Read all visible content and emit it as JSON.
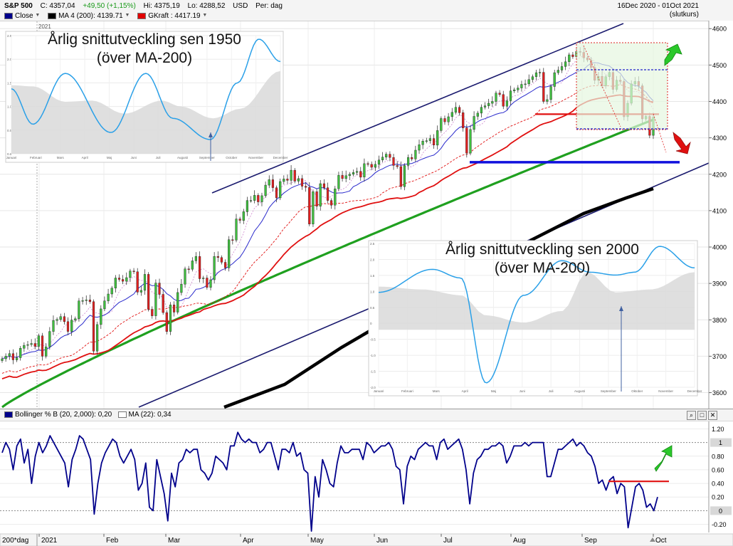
{
  "header": {
    "symbol": "S&P 500",
    "close": "C: 4357,04",
    "change": "+49,50 (+1,15%)",
    "high": "Hi: 4375,19",
    "low": "Lo: 4288,52",
    "currency": "USD",
    "period": "Per: dag",
    "range": "16Dec 2020 - 01Oct 2021",
    "basis": "(slutkurs)",
    "legend": [
      {
        "label": "Close",
        "color": "#00008b"
      },
      {
        "label": "MA 4 (200): 4139.71",
        "color": "#000000"
      },
      {
        "label": "GKraft : 4417.19",
        "color": "#e00000"
      }
    ]
  },
  "lower_panel": {
    "title": "Bollinger % B (20, 2,000): 0,20",
    "ma_label": "MA (22): 0,34",
    "color_line": "#00008b",
    "icons": [
      "magnifier-icon",
      "maximize-icon",
      "close-icon"
    ]
  },
  "x_axis": {
    "labels": [
      "200*dag",
      "2021",
      "Feb",
      "Mar",
      "Apr",
      "May",
      "Jun",
      "Jul",
      "Aug",
      "Sep",
      "Oct"
    ],
    "months_x": [
      55,
      146,
      233,
      338,
      433,
      526,
      620,
      718,
      818,
      918
    ]
  },
  "insets": [
    {
      "title_line1": "Årlig snittutveckling sen 1950",
      "title_line2": "(över MA-200)",
      "year_tag": "2021",
      "y_ticks": [
        "2.5",
        "2.0",
        "1.5",
        "1.0",
        "0.5",
        "0.0"
      ],
      "x_ticks": [
        "Januari",
        "Februari",
        "Mars",
        "April",
        "Maj",
        "Juni",
        "Juli",
        "Augusti",
        "September",
        "October",
        "November",
        "December"
      ],
      "line_color": "#2aa0e8"
    },
    {
      "title_line1": "Årlig snittutveckling sen 2000",
      "title_line2": "(över MA-200)",
      "y_ticks": [
        "2.5",
        "2.0",
        "1.5",
        "1.0",
        "0.5",
        "0",
        "-0.5",
        "-1.0",
        "-1.5",
        "-2.0"
      ],
      "x_ticks": [
        "Januari",
        "Februari",
        "Mars",
        "April",
        "Maj",
        "Juni",
        "Juli",
        "Augusti",
        "September",
        "Oktober",
        "November",
        "December"
      ],
      "line_color": "#2aa0e8"
    }
  ],
  "chart_data": [
    {
      "type": "candlestick",
      "y_ticks": [
        3600,
        3700,
        3800,
        3900,
        4000,
        4100,
        4200,
        4300,
        4400,
        4500,
        4600
      ],
      "ylim": [
        3560,
        4620
      ],
      "close_series": [
        3693,
        3700,
        3707,
        3690,
        3696,
        3722,
        3730,
        3732,
        3735,
        3727,
        3756,
        3700,
        3726,
        3768,
        3798,
        3801,
        3809,
        3795,
        3768,
        3799,
        3803,
        3852,
        3853,
        3855,
        3850,
        3714,
        3787,
        3830,
        3852,
        3871,
        3887,
        3915,
        3911,
        3906,
        3916,
        3934,
        3932,
        3876,
        3881,
        3925,
        3829,
        3811,
        3901,
        3870,
        3820,
        3768,
        3841,
        3821,
        3875,
        3898,
        3940,
        3939,
        3962,
        3974,
        3913,
        3915,
        3889,
        3910,
        3974,
        3971,
        3958,
        3943,
        4020,
        4019,
        4077,
        4073,
        4097,
        4128,
        4128,
        4142,
        4124,
        4141,
        4170,
        4185,
        4163,
        4135,
        4180,
        4187,
        4183,
        4211,
        4181,
        4188,
        4167,
        4164,
        4063,
        4152,
        4112,
        4174,
        4163,
        4128,
        4115,
        4160,
        4197,
        4188,
        4196,
        4200,
        4205,
        4208,
        4192,
        4229,
        4227,
        4219,
        4227,
        4239,
        4247,
        4255,
        4246,
        4224,
        4221,
        4166,
        4224,
        4246,
        4242,
        4266,
        4281,
        4291,
        4292,
        4298,
        4280,
        4320,
        4353,
        4344,
        4358,
        4370,
        4384,
        4369,
        4327,
        4258,
        4323,
        4359,
        4368,
        4384,
        4388,
        4395,
        4400,
        4423,
        4419,
        4387,
        4402,
        4429,
        4432,
        4437,
        4447,
        4448,
        4460,
        4468,
        4479,
        4480,
        4400,
        4405,
        4441,
        4479,
        4486,
        4496,
        4509,
        4528,
        4523,
        4537,
        4535,
        4520,
        4514,
        4493,
        4458,
        4469,
        4443,
        4468,
        4480,
        4433,
        4458,
        4455,
        4358,
        4395,
        4448,
        4455,
        4443,
        4352,
        4359,
        4307,
        4357
      ],
      "ma_200_last": 4139.71,
      "gkraft_last": 4417.19,
      "annotations": {
        "horizontal_support": 4233,
        "red_resistance": 4365,
        "channel": "rising parallel trend channel"
      }
    },
    {
      "type": "line",
      "name": "Bollinger % B",
      "y_ticks": [
        -0.2,
        0,
        0.2,
        0.4,
        0.6,
        0.8,
        1,
        1.2
      ],
      "highlight_ticks": [
        0,
        1
      ],
      "ylim": [
        -0.32,
        1.32
      ],
      "values": [
        0.85,
        1,
        0.9,
        0.6,
        0.95,
        1.05,
        0.7,
        0.9,
        0.4,
        0.8,
        1,
        0.85,
        0.95,
        1.1,
        1,
        0.9,
        0.8,
        0.7,
        0.35,
        0.75,
        0.9,
        1.1,
        1.05,
        0.9,
        0.75,
        -0.05,
        0.4,
        0.7,
        0.85,
        0.95,
        1.05,
        1,
        0.8,
        0.7,
        0.8,
        0.9,
        0.75,
        0.3,
        0.4,
        0.7,
        0.05,
        0,
        0.75,
        0.5,
        0.25,
        -0.15,
        0.55,
        0.35,
        0.7,
        0.75,
        0.9,
        0.85,
        0.9,
        0.9,
        0.6,
        0.55,
        0.45,
        0.55,
        0.8,
        0.75,
        0.7,
        0.6,
        0.95,
        0.95,
        1.15,
        1.05,
        1,
        1.05,
        1,
        1,
        0.85,
        0.9,
        1,
        1,
        0.8,
        0.6,
        0.9,
        0.9,
        0.85,
        1,
        0.8,
        0.85,
        0.6,
        0.55,
        -0.3,
        0.5,
        0.2,
        0.75,
        0.6,
        0.4,
        0.35,
        0.7,
        0.95,
        0.85,
        0.85,
        0.9,
        0.9,
        0.9,
        0.75,
        1,
        0.95,
        0.85,
        0.9,
        0.95,
        0.95,
        1,
        0.9,
        0.65,
        0.6,
        0.1,
        0.65,
        0.8,
        0.75,
        0.9,
        0.95,
        1,
        0.95,
        0.95,
        0.75,
        1,
        1.05,
        0.9,
        0.95,
        1,
        1.05,
        0.9,
        0.6,
        0.1,
        0.55,
        0.75,
        0.8,
        0.9,
        0.9,
        0.95,
        0.95,
        1,
        0.95,
        0.7,
        0.8,
        0.95,
        0.95,
        0.95,
        1,
        0.95,
        1,
        1,
        1,
        1,
        0.5,
        0.5,
        0.7,
        0.9,
        0.9,
        0.95,
        1,
        1.05,
        0.95,
        1,
        0.95,
        0.85,
        0.8,
        0.65,
        0.4,
        0.45,
        0.3,
        0.45,
        0.5,
        0.25,
        0.4,
        0.35,
        -0.25,
        0.05,
        0.35,
        0.4,
        0.3,
        0.05,
        0.1,
        0,
        0.2
      ]
    }
  ]
}
